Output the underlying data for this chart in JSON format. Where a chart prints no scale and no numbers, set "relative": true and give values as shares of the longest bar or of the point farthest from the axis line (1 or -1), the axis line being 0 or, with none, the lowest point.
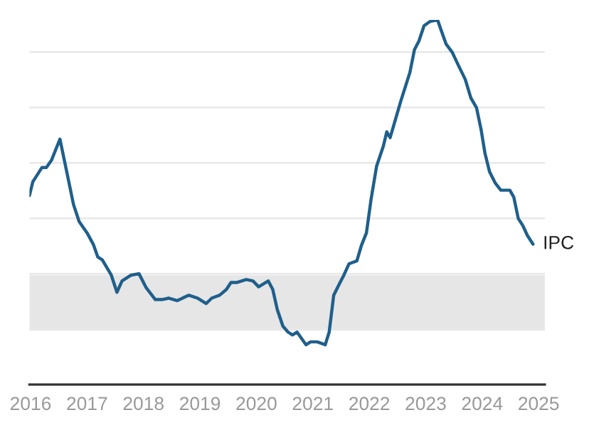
{
  "chart_data": {
    "type": "line",
    "relative": true,
    "grid": "y",
    "legend": false,
    "xlim": [
      2015.98,
      2025.11
    ],
    "xticks": [
      2016,
      2017,
      2018,
      2019,
      2020,
      2021,
      2022,
      2023,
      2024,
      2025
    ],
    "bands": [
      {
        "axis": "y",
        "from": 0.148,
        "to": 0.3,
        "color": "#e6e6e6"
      }
    ],
    "series": [
      {
        "name": "IPC",
        "color": "#1f5f8b",
        "x": [
          2015.98,
          2016.04,
          2016.09,
          2016.2,
          2016.28,
          2016.37,
          2016.52,
          2016.64,
          2016.76,
          2016.86,
          2017.0,
          2017.11,
          2017.19,
          2017.27,
          2017.43,
          2017.53,
          2017.62,
          2017.78,
          2017.92,
          2018.05,
          2018.21,
          2018.33,
          2018.45,
          2018.6,
          2018.8,
          2018.96,
          2019.11,
          2019.21,
          2019.35,
          2019.47,
          2019.55,
          2019.66,
          2019.82,
          2019.94,
          2020.04,
          2020.21,
          2020.29,
          2020.37,
          2020.47,
          2020.56,
          2020.64,
          2020.72,
          2020.88,
          2020.96,
          2021.08,
          2021.22,
          2021.29,
          2021.37,
          2021.47,
          2021.55,
          2021.64,
          2021.78,
          2021.86,
          2021.95,
          2022.03,
          2022.13,
          2022.25,
          2022.31,
          2022.37,
          2022.56,
          2022.72,
          2022.8,
          2022.88,
          2022.97,
          2023.08,
          2023.21,
          2023.27,
          2023.36,
          2023.47,
          2023.58,
          2023.7,
          2023.8,
          2023.9,
          2023.98,
          2024.05,
          2024.13,
          2024.23,
          2024.33,
          2024.49,
          2024.56,
          2024.64,
          2024.72,
          2024.8,
          2024.9
        ],
        "values": [
          0.518,
          0.556,
          0.568,
          0.595,
          0.595,
          0.615,
          0.673,
          0.584,
          0.494,
          0.447,
          0.416,
          0.385,
          0.35,
          0.342,
          0.3,
          0.253,
          0.284,
          0.3,
          0.304,
          0.265,
          0.233,
          0.233,
          0.237,
          0.23,
          0.245,
          0.237,
          0.222,
          0.237,
          0.245,
          0.261,
          0.28,
          0.28,
          0.288,
          0.284,
          0.268,
          0.284,
          0.261,
          0.206,
          0.16,
          0.144,
          0.136,
          0.144,
          0.109,
          0.117,
          0.117,
          0.109,
          0.144,
          0.245,
          0.276,
          0.3,
          0.331,
          0.339,
          0.381,
          0.416,
          0.506,
          0.599,
          0.654,
          0.693,
          0.677,
          0.778,
          0.856,
          0.918,
          0.942,
          0.984,
          0.996,
          1,
          0.973,
          0.934,
          0.911,
          0.875,
          0.837,
          0.786,
          0.759,
          0.7,
          0.634,
          0.584,
          0.553,
          0.533,
          0.533,
          0.514,
          0.455,
          0.436,
          0.409,
          0.385
        ]
      }
    ]
  }
}
